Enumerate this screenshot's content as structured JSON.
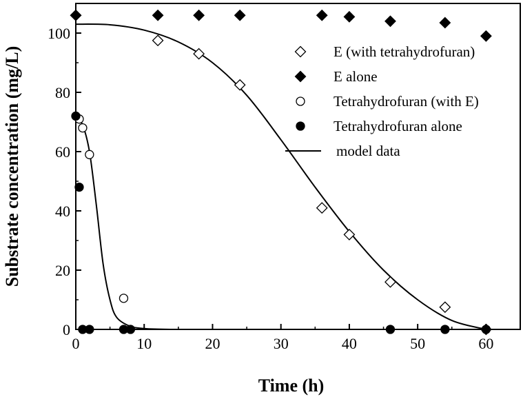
{
  "chart_data": {
    "type": "scatter",
    "title": "",
    "xlabel": "Time (h)",
    "ylabel": "Substrate concentration (mg/L)",
    "xlim": [
      0,
      65
    ],
    "ylim": [
      0,
      110
    ],
    "xticks": [
      0,
      10,
      20,
      30,
      40,
      50,
      60
    ],
    "yticks": [
      0,
      20,
      40,
      60,
      80,
      100
    ],
    "grid": false,
    "legend_position": "top-right",
    "series": [
      {
        "name": "E (with tetrahydrofuran)",
        "marker": "diamond-open",
        "color": "#000000",
        "x": [
          0,
          12,
          18,
          24,
          36,
          40,
          46,
          54,
          60
        ],
        "y": [
          106,
          97.5,
          93,
          82.5,
          41,
          32,
          16,
          7.5,
          0
        ]
      },
      {
        "name": "E alone",
        "marker": "diamond-filled",
        "color": "#000000",
        "x": [
          0,
          12,
          18,
          24,
          36,
          40,
          46,
          54,
          60
        ],
        "y": [
          106,
          106,
          106,
          106,
          106,
          105.5,
          104,
          103.5,
          99
        ]
      },
      {
        "name": "Tetrahydrofuran (with E)",
        "marker": "circle-open",
        "color": "#000000",
        "x": [
          0.5,
          1,
          2,
          7
        ],
        "y": [
          71,
          68,
          59,
          10.5
        ]
      },
      {
        "name": "Tetrahydrofuran alone",
        "marker": "circle-filled",
        "color": "#000000",
        "x": [
          0,
          0.5,
          1,
          2,
          7,
          8,
          46,
          54,
          60
        ],
        "y": [
          72,
          48,
          0,
          0,
          0,
          0,
          0,
          0,
          0
        ]
      },
      {
        "name": "model data",
        "marker": "line",
        "color": "#000000",
        "x": [
          0,
          5,
          10,
          15,
          20,
          25,
          30,
          35,
          40,
          45,
          50,
          55,
          60
        ],
        "y": [
          103,
          102.8,
          101,
          97,
          90,
          79,
          64,
          48,
          33,
          20,
          10,
          3,
          0
        ]
      },
      {
        "name": "model data",
        "marker": "line",
        "color": "#000000",
        "x": [
          0,
          1,
          2,
          3,
          4,
          5,
          6,
          8,
          10,
          12,
          15,
          18
        ],
        "y": [
          72,
          69,
          60,
          42,
          22,
          10,
          4,
          1,
          0.3,
          0.1,
          0,
          0
        ]
      }
    ]
  }
}
